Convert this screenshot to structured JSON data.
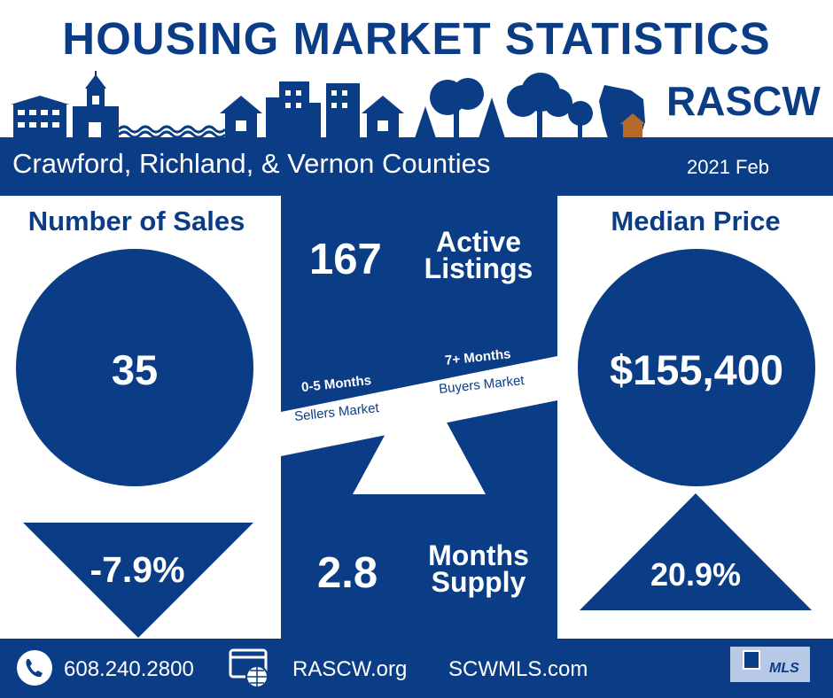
{
  "title": "HOUSING MARKET STATISTICS",
  "brand": "RASCW",
  "region": "Crawford, Richland, & Vernon Counties",
  "period": "2021 Feb",
  "sales": {
    "heading": "Number of Sales",
    "value": "35",
    "change": "-7.9%",
    "direction": "down"
  },
  "active": {
    "value": "167",
    "label_line1": "Active",
    "label_line2": "Listings"
  },
  "scale": {
    "left_title": "0-5 Months",
    "left_sub": "Sellers Market",
    "right_title": "7+ Months",
    "right_sub": "Buyers Market"
  },
  "supply": {
    "value": "2.8",
    "label_line1": "Months",
    "label_line2": "Supply"
  },
  "price": {
    "heading": "Median Price",
    "value": "$155,400",
    "change": "20.9%",
    "direction": "up"
  },
  "footer": {
    "phone": "608.240.2800",
    "site1": "RASCW.org",
    "site2": "SCWMLS.com",
    "badge_text": "MLS"
  },
  "colors": {
    "navy": "#0b3d86",
    "white": "#ffffff",
    "house_accent": "#b46a2a"
  },
  "icons": [
    "phone-icon",
    "web-icon",
    "realtor-mls-logo",
    "skyline-illustration",
    "wisconsin-map-icon"
  ]
}
